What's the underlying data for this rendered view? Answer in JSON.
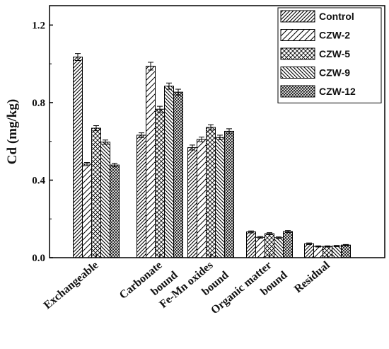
{
  "chart_data": {
    "type": "bar",
    "title": "",
    "xlabel": "",
    "ylabel": "Cd (mg/kg)",
    "ylim": [
      0.0,
      1.3
    ],
    "yticks": [
      "0.0",
      "0.4",
      "0.8",
      "1.2"
    ],
    "ytick_values": [
      0.0,
      0.4,
      0.8,
      1.2
    ],
    "grid": false,
    "legend_position": "top-right",
    "categories": [
      [
        "Exchangeable"
      ],
      [
        "Carbonate",
        "bound"
      ],
      [
        "Fe-Mn oxides",
        "bound"
      ],
      [
        "Organic matter",
        "bound"
      ],
      [
        "Residual"
      ]
    ],
    "series": [
      {
        "name": "Control",
        "pattern": "diag-right",
        "values": [
          1.035,
          0.632,
          0.568,
          0.133,
          0.072
        ],
        "errors": [
          0.018,
          0.012,
          0.013,
          0.005,
          0.004
        ]
      },
      {
        "name": "CZW-2",
        "pattern": "diag-sparse",
        "values": [
          0.483,
          0.988,
          0.61,
          0.105,
          0.058
        ],
        "errors": [
          0.008,
          0.02,
          0.012,
          0.004,
          0.003
        ]
      },
      {
        "name": "CZW-5",
        "pattern": "cross",
        "values": [
          0.668,
          0.766,
          0.672,
          0.124,
          0.058
        ],
        "errors": [
          0.013,
          0.015,
          0.014,
          0.005,
          0.003
        ]
      },
      {
        "name": "CZW-9",
        "pattern": "diag-left",
        "values": [
          0.596,
          0.885,
          0.62,
          0.103,
          0.06
        ],
        "errors": [
          0.011,
          0.016,
          0.012,
          0.004,
          0.003
        ]
      },
      {
        "name": "CZW-12",
        "pattern": "cross-dense",
        "values": [
          0.478,
          0.854,
          0.652,
          0.135,
          0.065
        ],
        "errors": [
          0.009,
          0.015,
          0.013,
          0.005,
          0.003
        ]
      }
    ]
  }
}
